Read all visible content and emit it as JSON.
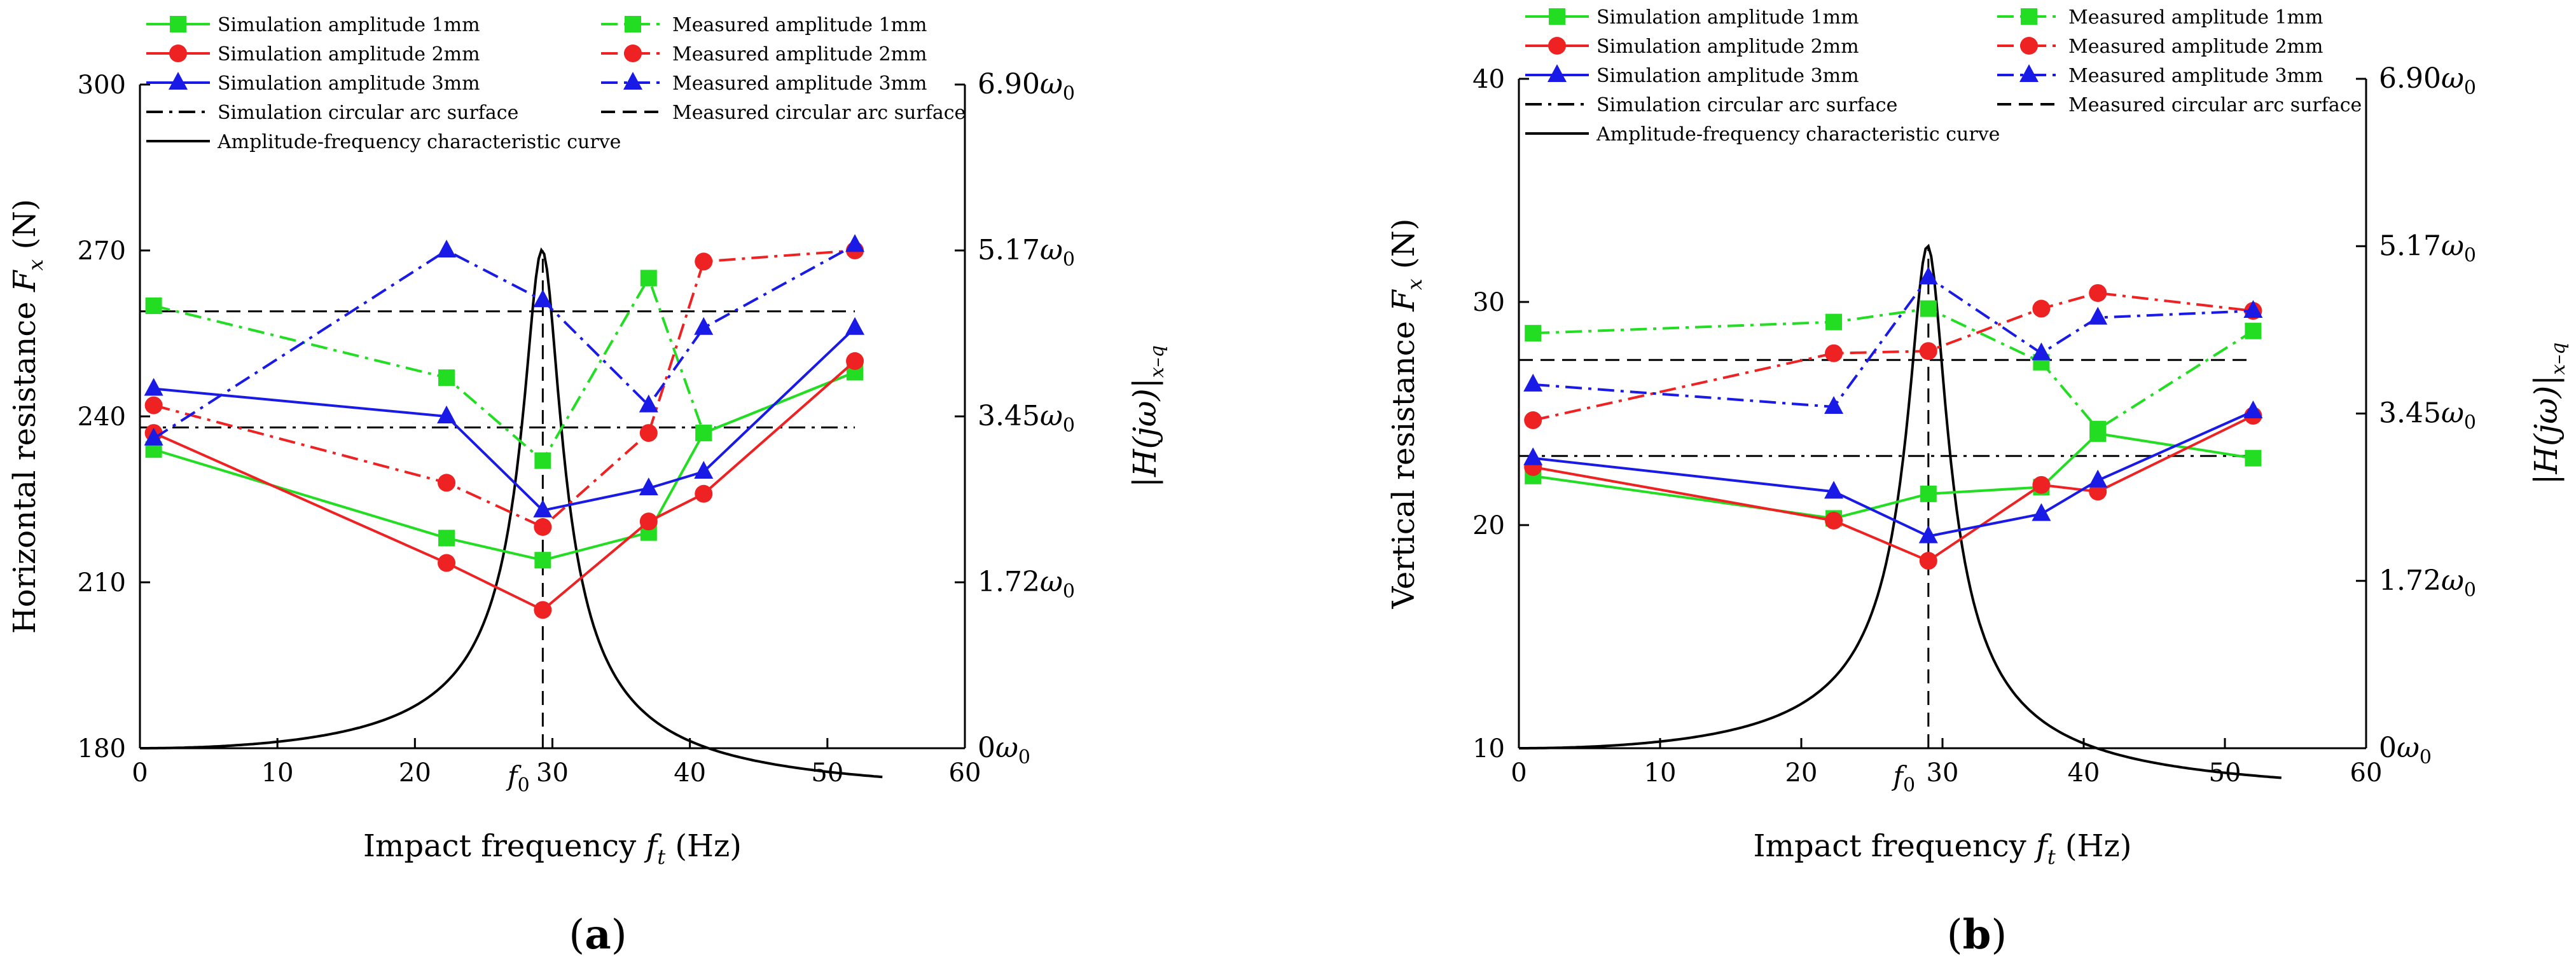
{
  "style": {
    "green": "#22dd22",
    "red": "#ee2222",
    "blue": "#1a1ae6",
    "black": "#000000"
  },
  "legend": {
    "sim_1mm": "Simulation amplitude 1mm",
    "meas_1mm": "Measured amplitude 1mm",
    "sim_2mm": "Simulation amplitude 2mm",
    "meas_2mm": "Measured amplitude 2mm",
    "sim_3mm": "Simulation amplitude 3mm",
    "meas_3mm": "Measured amplitude 3mm",
    "sim_arc": "Simulation circular arc surface",
    "meas_arc": "Measured circular arc surface",
    "afc": "Amplitude-frequency characteristic curve"
  },
  "chart_data": [
    {
      "panel_label": "a",
      "type": "line",
      "xlabel_prefix": "Impact frequency ",
      "xlabel_var": "f",
      "xlabel_sub": "t",
      "xlabel_unit": " (Hz)",
      "ylabel_text": "Horizontal resistance ",
      "ylabel_var": "F",
      "ylabel_sub": "x",
      "ylabel_unit": " (N)",
      "right_ylabel": "|H(jω)|",
      "right_ylabel_sub": "x–q",
      "xlim": [
        0,
        60
      ],
      "ylim": [
        180,
        300
      ],
      "x_ticks": [
        0,
        10,
        20,
        30,
        40,
        50,
        60
      ],
      "y_ticks": [
        180,
        210,
        240,
        270,
        300
      ],
      "f0_label": "f",
      "f0_sub": "0",
      "f0_value": 29.3,
      "right_ticks": [
        {
          "base": "0ω",
          "sub": "0",
          "frac": 0
        },
        {
          "base": "1.72ω",
          "sub": "0",
          "frac": 0.25
        },
        {
          "base": "3.45ω",
          "sub": "0",
          "frac": 0.5
        },
        {
          "base": "5.17ω",
          "sub": "0",
          "frac": 0.75
        },
        {
          "base": "6.90ω",
          "sub": "0",
          "frac": 1
        }
      ],
      "series": [
        {
          "key": "sim_1mm",
          "color": "green",
          "dash": "solid",
          "marker": "square",
          "x": [
            1,
            22.3,
            29.3,
            37,
            41,
            52
          ],
          "y": [
            234,
            218,
            214,
            219,
            237,
            248
          ]
        },
        {
          "key": "meas_1mm",
          "color": "green",
          "dash": "dashdot",
          "marker": "square",
          "x": [
            1,
            22.3,
            29.3,
            37,
            41,
            52
          ],
          "y": [
            260,
            247,
            232,
            265,
            237,
            248
          ]
        },
        {
          "key": "sim_2mm",
          "color": "red",
          "dash": "solid",
          "marker": "circle",
          "x": [
            1,
            22.3,
            29.3,
            37,
            41,
            52
          ],
          "y": [
            237,
            213.5,
            205,
            221,
            226,
            250
          ]
        },
        {
          "key": "meas_2mm",
          "color": "red",
          "dash": "dashdot",
          "marker": "circle",
          "x": [
            1,
            22.3,
            29.3,
            37,
            41,
            52
          ],
          "y": [
            242,
            228,
            220,
            237,
            268,
            270
          ]
        },
        {
          "key": "sim_3mm",
          "color": "blue",
          "dash": "solid",
          "marker": "triangle",
          "x": [
            1,
            22.3,
            29.3,
            37,
            41,
            52
          ],
          "y": [
            245,
            240,
            223,
            227,
            230,
            256
          ]
        },
        {
          "key": "meas_3mm",
          "color": "blue",
          "dash": "dashdot",
          "marker": "triangle",
          "x": [
            1,
            22.3,
            29.3,
            37,
            41,
            52
          ],
          "y": [
            236,
            270,
            261,
            242,
            256,
            271
          ]
        }
      ],
      "reference_lines": [
        {
          "key": "sim_arc",
          "dash": "dashdot",
          "y": 238,
          "x": [
            0,
            52
          ]
        },
        {
          "key": "meas_arc",
          "dash": "dashed",
          "y": 259,
          "x": [
            0,
            52
          ]
        }
      ],
      "afc_curve": {
        "peak_freq": 29.3,
        "peak_y": 270,
        "base_y": 180,
        "end_x": 54,
        "zeta": 0.045
      }
    },
    {
      "panel_label": "b",
      "type": "line",
      "xlabel_prefix": "Impact frequency ",
      "xlabel_var": "f",
      "xlabel_sub": "t",
      "xlabel_unit": " (Hz)",
      "ylabel_text": "Vertical resistance ",
      "ylabel_var": "F",
      "ylabel_sub": "x",
      "ylabel_unit": " (N)",
      "right_ylabel": "|H(jω)|",
      "right_ylabel_sub": "x–q",
      "xlim": [
        0,
        60
      ],
      "ylim": [
        10,
        40
      ],
      "x_ticks": [
        0,
        10,
        20,
        30,
        40,
        50,
        60
      ],
      "y_ticks": [
        10,
        20,
        30,
        40
      ],
      "f0_label": "f",
      "f0_sub": "0",
      "f0_value": 29,
      "right_ticks": [
        {
          "base": "0ω",
          "sub": "0",
          "frac": 0
        },
        {
          "base": "1.72ω",
          "sub": "0",
          "frac": 0.25
        },
        {
          "base": "3.45ω",
          "sub": "0",
          "frac": 0.5
        },
        {
          "base": "5.17ω",
          "sub": "0",
          "frac": 0.75
        },
        {
          "base": "6.90ω",
          "sub": "0",
          "frac": 1
        }
      ],
      "series": [
        {
          "key": "sim_1mm",
          "color": "green",
          "dash": "solid",
          "marker": "square",
          "x": [
            1,
            22.3,
            29,
            37,
            41,
            52
          ],
          "y": [
            22.2,
            20.3,
            21.4,
            21.7,
            24.1,
            23
          ]
        },
        {
          "key": "meas_1mm",
          "color": "green",
          "dash": "dashdot",
          "marker": "square",
          "x": [
            1,
            22.3,
            29,
            37,
            41,
            52
          ],
          "y": [
            28.6,
            29.1,
            29.7,
            27.3,
            24.3,
            28.7
          ]
        },
        {
          "key": "sim_2mm",
          "color": "red",
          "dash": "solid",
          "marker": "circle",
          "x": [
            1,
            22.3,
            29,
            37,
            41,
            52
          ],
          "y": [
            22.6,
            20.2,
            18.4,
            21.8,
            21.5,
            24.9
          ]
        },
        {
          "key": "meas_2mm",
          "color": "red",
          "dash": "dashdot",
          "marker": "circle",
          "x": [
            1,
            22.3,
            29,
            37,
            41,
            52
          ],
          "y": [
            24.7,
            27.7,
            27.8,
            29.7,
            30.4,
            29.6
          ]
        },
        {
          "key": "sim_3mm",
          "color": "blue",
          "dash": "solid",
          "marker": "triangle",
          "x": [
            1,
            22.3,
            29,
            37,
            41,
            52
          ],
          "y": [
            23,
            21.5,
            19.5,
            20.5,
            22,
            25.1
          ]
        },
        {
          "key": "meas_3mm",
          "color": "blue",
          "dash": "dashdot",
          "marker": "triangle",
          "x": [
            1,
            22.3,
            29,
            37,
            41,
            52
          ],
          "y": [
            26.3,
            25.3,
            31.1,
            27.7,
            29.3,
            29.6
          ]
        }
      ],
      "reference_lines": [
        {
          "key": "sim_arc",
          "dash": "dashdot",
          "y": 23.1,
          "x": [
            0,
            52
          ]
        },
        {
          "key": "meas_arc",
          "dash": "dashed",
          "y": 27.4,
          "x": [
            0,
            52
          ]
        }
      ],
      "afc_curve": {
        "peak_freq": 29,
        "peak_y": 32.5,
        "base_y": 10,
        "end_x": 54,
        "zeta": 0.045
      }
    }
  ]
}
